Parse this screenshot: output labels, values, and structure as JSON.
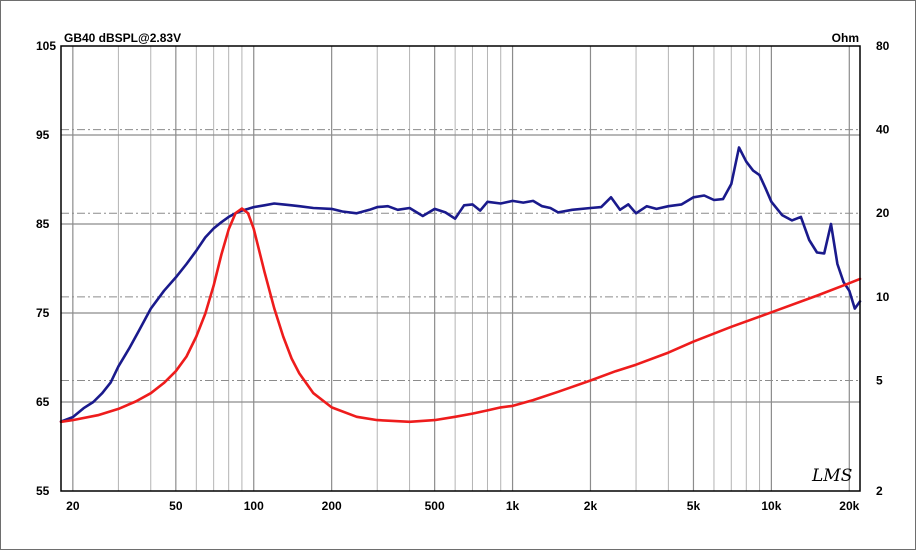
{
  "chart_data": {
    "type": "line",
    "title": "GB40 dBSPL@2.83V",
    "y2label": "Ohm",
    "xscale": "log",
    "xlim": [
      18,
      22000
    ],
    "ylim": [
      55,
      105
    ],
    "y2lim": [
      2,
      80
    ],
    "y2scale": "log",
    "x_ticks": [
      {
        "value": 20,
        "label": "20"
      },
      {
        "value": 50,
        "label": "50"
      },
      {
        "value": 100,
        "label": "100"
      },
      {
        "value": 200,
        "label": "200"
      },
      {
        "value": 500,
        "label": "500"
      },
      {
        "value": 1000,
        "label": "1k"
      },
      {
        "value": 2000,
        "label": "2k"
      },
      {
        "value": 5000,
        "label": "5k"
      },
      {
        "value": 10000,
        "label": "10k"
      },
      {
        "value": 20000,
        "label": "20k"
      }
    ],
    "y_ticks": [
      "55",
      "65",
      "75",
      "85",
      "95",
      "105"
    ],
    "y2_ticks": [
      "2",
      "5",
      "10",
      "20",
      "40",
      "80"
    ],
    "watermark": "LMS",
    "grid": true,
    "colors": {
      "spl": "#1a1a8c",
      "impedance": "#ee1c1c",
      "grid_major": "#8c8c8c",
      "grid_minor": "#b4b4b4"
    },
    "series": [
      {
        "axis": "left",
        "color": "#1a1a8c",
        "x": [
          18,
          20,
          22,
          24,
          26,
          28,
          30,
          33,
          36,
          40,
          45,
          50,
          55,
          60,
          65,
          70,
          75,
          80,
          85,
          90,
          95,
          100,
          110,
          120,
          130,
          140,
          150,
          170,
          200,
          220,
          250,
          280,
          300,
          330,
          360,
          400,
          450,
          500,
          550,
          600,
          650,
          700,
          750,
          800,
          900,
          1000,
          1100,
          1200,
          1300,
          1400,
          1500,
          1700,
          2000,
          2200,
          2400,
          2600,
          2800,
          3000,
          3300,
          3600,
          4000,
          4500,
          5000,
          5500,
          6000,
          6500,
          7000,
          7500,
          8000,
          8500,
          9000,
          9500,
          10000,
          11000,
          12000,
          13000,
          14000,
          15000,
          16000,
          17000,
          18000,
          19000,
          20000,
          21000,
          22000
        ],
        "y": [
          62.8,
          63.3,
          64.3,
          65.0,
          66.0,
          67.2,
          69.0,
          71.0,
          73.0,
          75.5,
          77.5,
          79.0,
          80.5,
          82.0,
          83.5,
          84.5,
          85.2,
          85.8,
          86.2,
          86.5,
          86.7,
          86.9,
          87.1,
          87.3,
          87.2,
          87.1,
          87.0,
          86.8,
          86.7,
          86.4,
          86.2,
          86.6,
          86.9,
          87.0,
          86.6,
          86.8,
          85.9,
          86.7,
          86.3,
          85.6,
          87.1,
          87.2,
          86.5,
          87.5,
          87.3,
          87.6,
          87.4,
          87.6,
          87.0,
          86.8,
          86.3,
          86.6,
          86.8,
          86.9,
          88.0,
          86.6,
          87.2,
          86.2,
          87.0,
          86.7,
          87.0,
          87.2,
          88.0,
          88.2,
          87.7,
          87.8,
          89.5,
          93.6,
          92.0,
          91.0,
          90.5,
          89.0,
          87.5,
          86.0,
          85.4,
          85.8,
          83.2,
          81.8,
          81.7,
          85.0,
          80.5,
          78.5,
          77.5,
          75.5,
          76.3
        ]
      },
      {
        "axis": "right",
        "color": "#ee1c1c",
        "x": [
          18,
          20,
          25,
          30,
          35,
          40,
          45,
          50,
          55,
          60,
          65,
          70,
          75,
          80,
          85,
          90,
          95,
          100,
          110,
          120,
          130,
          140,
          150,
          170,
          200,
          250,
          300,
          400,
          500,
          600,
          700,
          800,
          900,
          1000,
          1200,
          1500,
          2000,
          2500,
          3000,
          4000,
          5000,
          7000,
          10000,
          15000,
          20000,
          22000
        ],
        "y": [
          3.55,
          3.6,
          3.75,
          3.95,
          4.2,
          4.5,
          4.9,
          5.4,
          6.1,
          7.2,
          8.7,
          11.0,
          14.2,
          17.5,
          20.0,
          20.8,
          20.0,
          17.6,
          12.3,
          9.1,
          7.2,
          6.0,
          5.3,
          4.5,
          4.0,
          3.7,
          3.6,
          3.55,
          3.6,
          3.7,
          3.8,
          3.9,
          4.0,
          4.05,
          4.25,
          4.55,
          5.0,
          5.4,
          5.7,
          6.3,
          6.9,
          7.8,
          8.8,
          10.1,
          11.2,
          11.6
        ]
      }
    ]
  }
}
